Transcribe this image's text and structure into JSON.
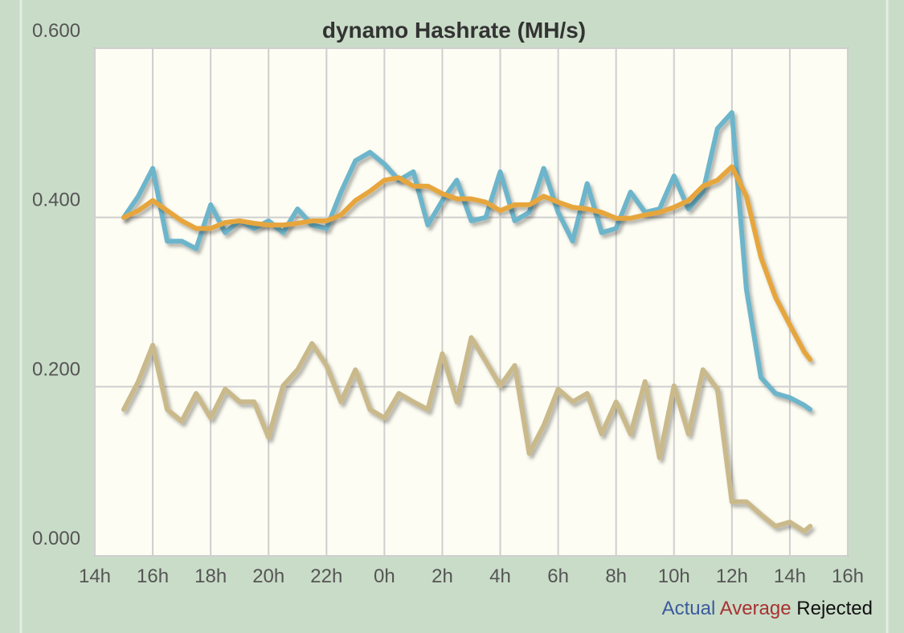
{
  "chart_data": {
    "type": "line",
    "title": "dynamo Hashrate (MH/s)",
    "x": [
      15,
      15.5,
      16,
      16.5,
      17,
      17.5,
      18,
      18.5,
      19,
      19.5,
      20,
      20.5,
      21,
      21.5,
      22,
      22.5,
      23,
      23.5,
      24,
      24.5,
      25,
      25.5,
      26,
      26.5,
      27,
      27.5,
      28,
      28.5,
      29,
      29.5,
      30,
      30.5,
      31,
      31.5,
      32,
      32.5,
      33,
      33.5,
      34,
      34.5,
      35,
      35.5,
      36,
      36.5,
      37,
      37.5,
      38,
      38.5,
      38.7
    ],
    "series": [
      {
        "name": "Actual",
        "color": "#6db5cb",
        "label_color": "#3b5b9c",
        "values": [
          0.4,
          0.425,
          0.458,
          0.372,
          0.372,
          0.363,
          0.415,
          0.382,
          0.396,
          0.387,
          0.396,
          0.382,
          0.41,
          0.391,
          0.387,
          0.43,
          0.467,
          0.477,
          0.463,
          0.444,
          0.454,
          0.391,
          0.42,
          0.444,
          0.396,
          0.4,
          0.454,
          0.396,
          0.406,
          0.458,
          0.406,
          0.372,
          0.44,
          0.382,
          0.387,
          0.43,
          0.406,
          0.41,
          0.449,
          0.41,
          0.43,
          0.505,
          0.524,
          0.315,
          0.211,
          0.192,
          0.187,
          0.178,
          0.173
        ]
      },
      {
        "name": "Average",
        "color": "#e6a63e",
        "label_color": "#a83232",
        "values": [
          0.4,
          0.408,
          0.42,
          0.408,
          0.396,
          0.387,
          0.387,
          0.394,
          0.396,
          0.393,
          0.391,
          0.391,
          0.393,
          0.396,
          0.396,
          0.403,
          0.42,
          0.431,
          0.444,
          0.447,
          0.437,
          0.437,
          0.428,
          0.422,
          0.422,
          0.418,
          0.408,
          0.415,
          0.415,
          0.425,
          0.418,
          0.412,
          0.41,
          0.406,
          0.399,
          0.399,
          0.403,
          0.406,
          0.412,
          0.42,
          0.437,
          0.444,
          0.46,
          0.425,
          0.353,
          0.306,
          0.273,
          0.241,
          0.232
        ]
      },
      {
        "name": "Rejected",
        "color": "#c9b98b",
        "label_color": "#111111",
        "values": [
          0.173,
          0.206,
          0.249,
          0.173,
          0.159,
          0.192,
          0.163,
          0.197,
          0.182,
          0.182,
          0.14,
          0.201,
          0.22,
          0.251,
          0.225,
          0.182,
          0.22,
          0.173,
          0.163,
          0.192,
          0.182,
          0.173,
          0.239,
          0.182,
          0.258,
          0.23,
          0.201,
          0.225,
          0.121,
          0.154,
          0.197,
          0.182,
          0.192,
          0.144,
          0.182,
          0.144,
          0.206,
          0.116,
          0.201,
          0.144,
          0.22,
          0.197,
          0.064,
          0.064,
          0.049,
          0.035,
          0.04,
          0.029,
          0.035
        ]
      }
    ],
    "xlim": [
      14,
      40
    ],
    "xticks": [
      {
        "value": 14,
        "label": "14h"
      },
      {
        "value": 16,
        "label": "16h"
      },
      {
        "value": 18,
        "label": "18h"
      },
      {
        "value": 20,
        "label": "20h"
      },
      {
        "value": 22,
        "label": "22h"
      },
      {
        "value": 24,
        "label": "0h"
      },
      {
        "value": 26,
        "label": "2h"
      },
      {
        "value": 28,
        "label": "4h"
      },
      {
        "value": 30,
        "label": "6h"
      },
      {
        "value": 32,
        "label": "8h"
      },
      {
        "value": 34,
        "label": "10h"
      },
      {
        "value": 36,
        "label": "12h"
      },
      {
        "value": 38,
        "label": "14h"
      },
      {
        "value": 40,
        "label": "16h"
      }
    ],
    "ylim": [
      0,
      0.6
    ],
    "yticks": [
      {
        "value": 0,
        "label": "0.000"
      },
      {
        "value": 0.2,
        "label": "0.200"
      },
      {
        "value": 0.4,
        "label": "0.400"
      },
      {
        "value": 0.6,
        "label": "0.600"
      }
    ],
    "grid": true
  }
}
